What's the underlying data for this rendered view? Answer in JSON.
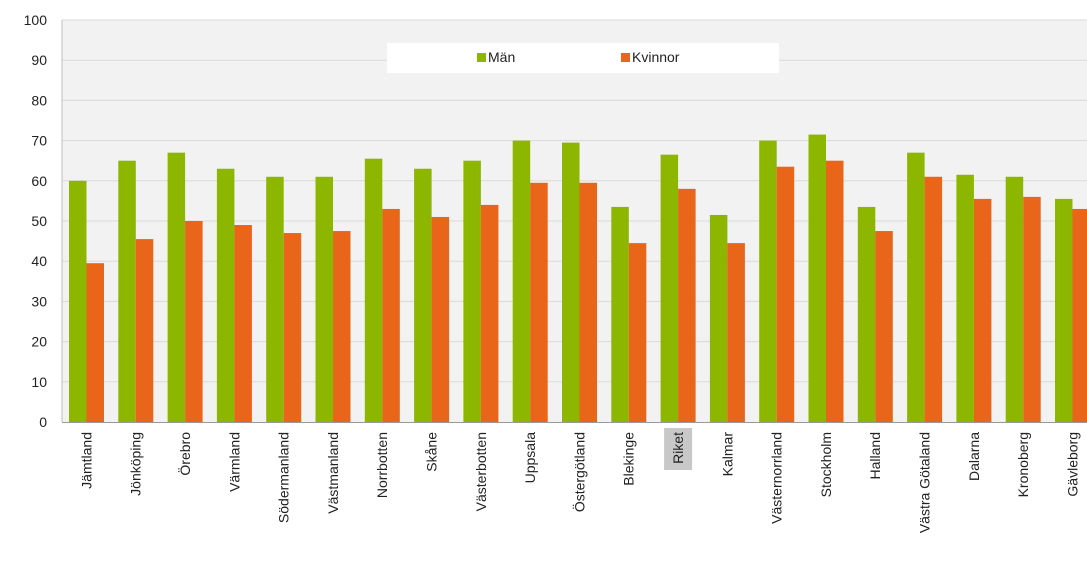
{
  "chart_data": {
    "type": "bar",
    "categories": [
      "Jämtland",
      "Jönköping",
      "Örebro",
      "Värmland",
      "Södermanland",
      "Västmanland",
      "Norrbotten",
      "Skåne",
      "Västerbotten",
      "Uppsala",
      "Östergötland",
      "Blekinge",
      "Riket",
      "Kalmar",
      "Västernorrland",
      "Stockholm",
      "Halland",
      "Västra Götaland",
      "Dalarna",
      "Kronoberg",
      "Gävleborg"
    ],
    "highlighted_category": "Riket",
    "series": [
      {
        "name": "Män",
        "color": "#8db600",
        "values": [
          60,
          65,
          67,
          63,
          61,
          61,
          65.5,
          63,
          65,
          70,
          69.5,
          53.5,
          66.5,
          51.5,
          70,
          71.5,
          53.5,
          67,
          61.5,
          61,
          55.5
        ]
      },
      {
        "name": "Kvinnor",
        "color": "#e8651a",
        "values": [
          39.5,
          45.5,
          50,
          49,
          47,
          47.5,
          53,
          51,
          54,
          59.5,
          59.5,
          44.5,
          58,
          44.5,
          63.5,
          65,
          47.5,
          61,
          55.5,
          56,
          53
        ]
      }
    ],
    "ylim": [
      0,
      100
    ],
    "yticks": [
      0,
      10,
      20,
      30,
      40,
      50,
      60,
      70,
      80,
      90,
      100
    ],
    "grid": true,
    "legend": "top-center",
    "plot_background": "#f2f2f2",
    "xlabel": "",
    "ylabel": "",
    "title": ""
  }
}
